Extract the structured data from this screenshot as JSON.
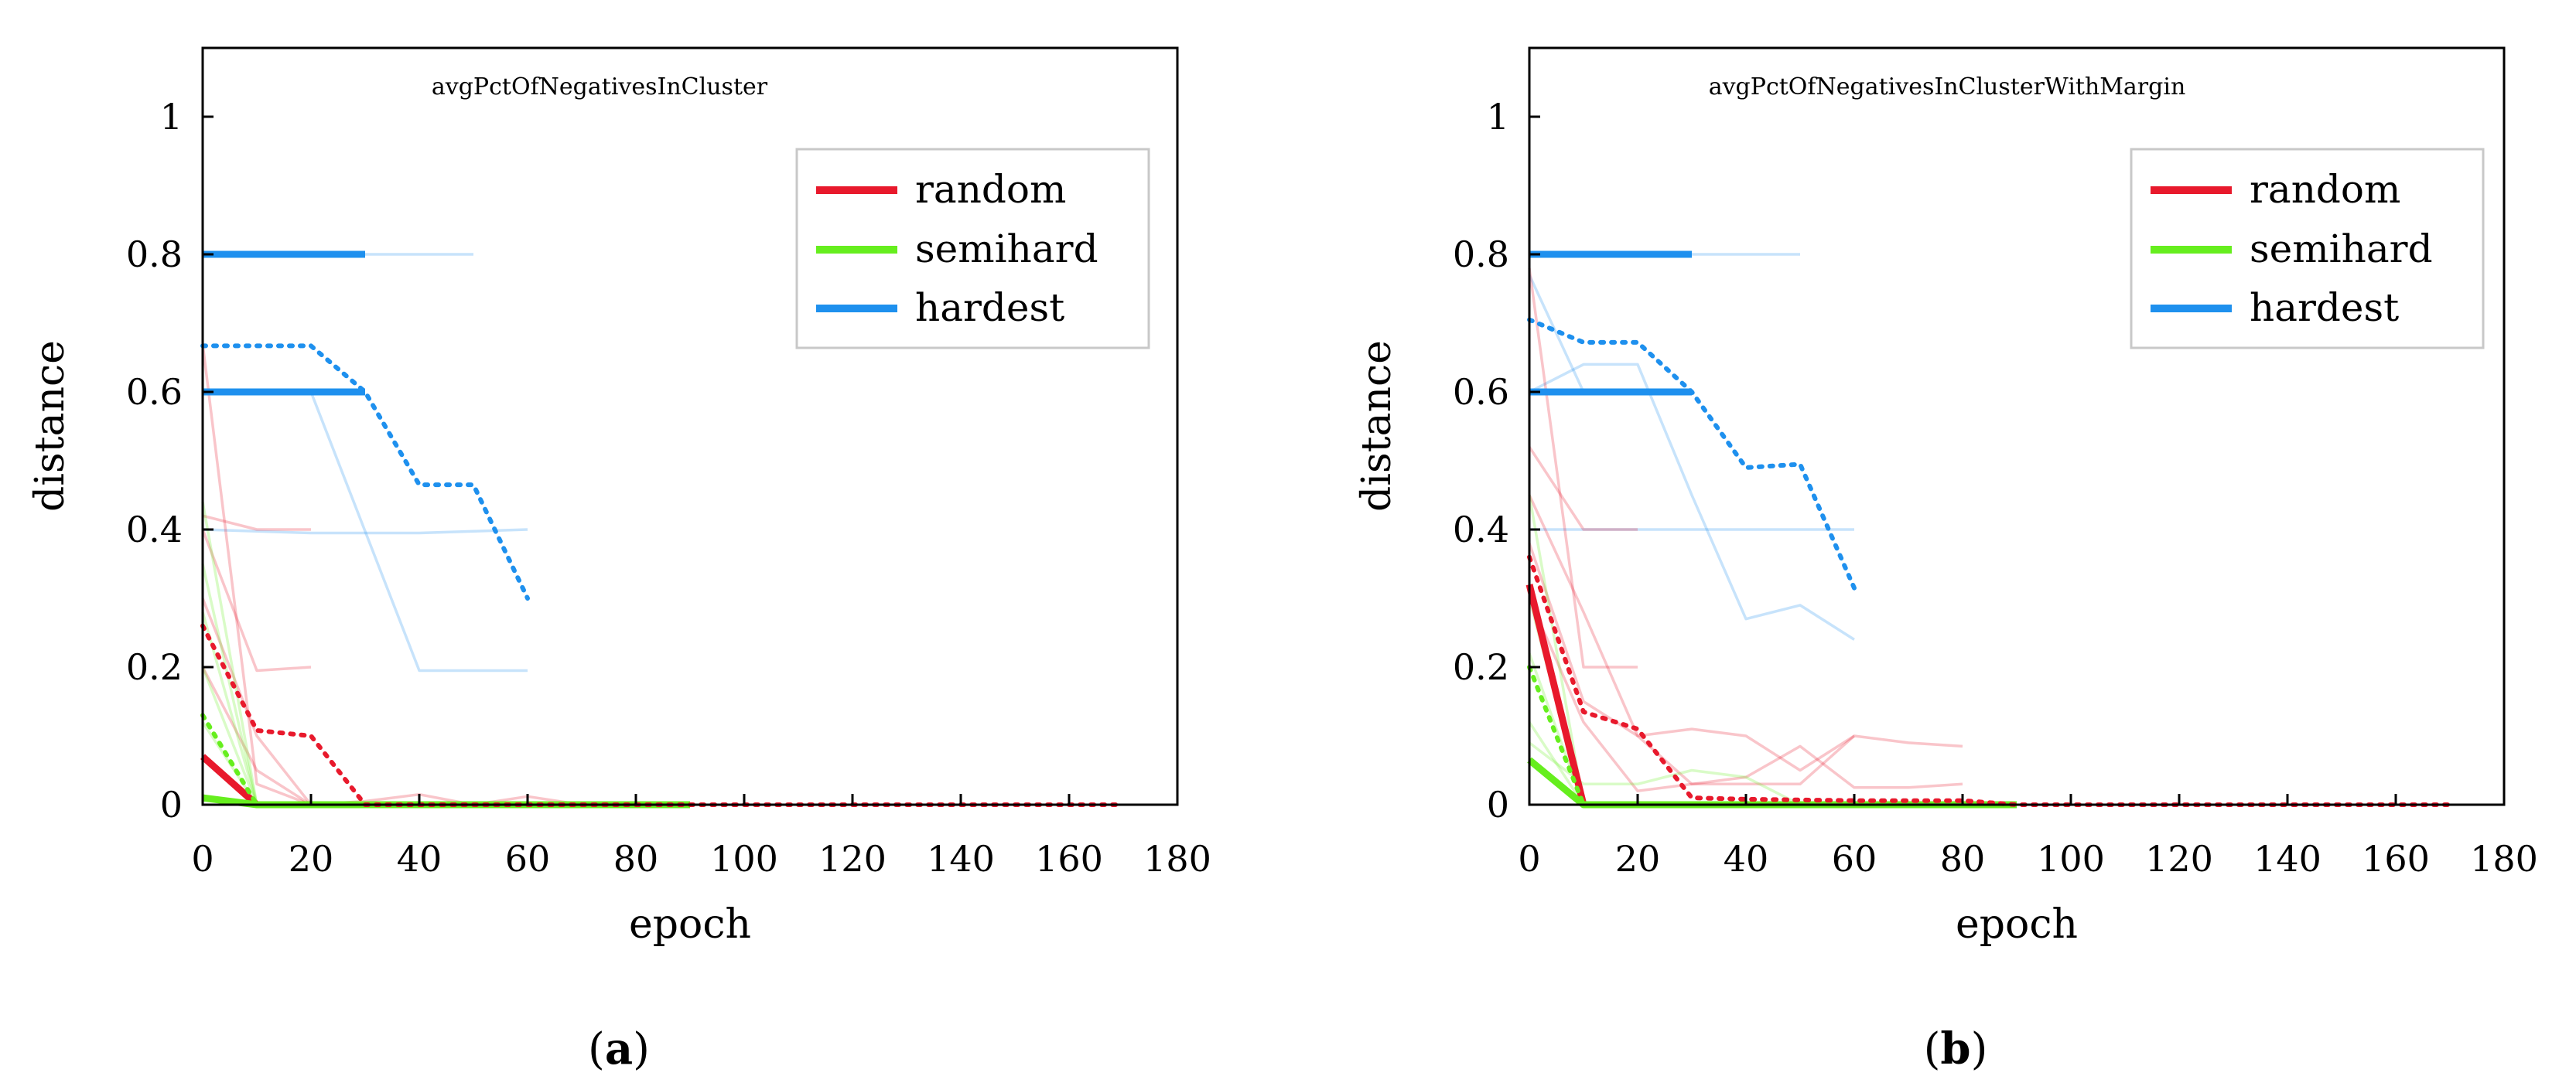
{
  "colors": {
    "random": "#e8192c",
    "semihard": "#66ee1e",
    "hardest": "#1e90ee"
  },
  "chart_data": [
    {
      "type": "line",
      "caption": "a",
      "title": "avgPctOfNegativesInCluster",
      "xlabel": "epoch",
      "ylabel": "distance",
      "xlim": [
        0,
        180
      ],
      "ylim": [
        0,
        1.1
      ],
      "xticks": [
        "0",
        "20",
        "40",
        "60",
        "80",
        "100",
        "120",
        "140",
        "160",
        "180"
      ],
      "yticks": [
        "0",
        "0.2",
        "0.4",
        "0.6",
        "0.8",
        "1"
      ],
      "legend": {
        "position": "top-right",
        "entries": [
          "random",
          "semihard",
          "hardest"
        ]
      },
      "series": [
        {
          "name": "hardest",
          "kind": "faint",
          "x": [
            0,
            20,
            30,
            50
          ],
          "y": [
            0.8,
            0.8,
            0.8,
            0.8
          ]
        },
        {
          "name": "hardest",
          "kind": "faint",
          "x": [
            0,
            10,
            20,
            40,
            60
          ],
          "y": [
            0.6,
            0.6,
            0.6,
            0.195,
            0.195
          ]
        },
        {
          "name": "hardest",
          "kind": "faint",
          "x": [
            0,
            20,
            40,
            60
          ],
          "y": [
            0.4,
            0.395,
            0.395,
            0.4
          ]
        },
        {
          "name": "hardest",
          "kind": "main",
          "x": [
            0,
            20,
            30
          ],
          "y": [
            0.8,
            0.8,
            0.8
          ]
        },
        {
          "name": "hardest",
          "kind": "main",
          "x": [
            0,
            20,
            30
          ],
          "y": [
            0.6,
            0.6,
            0.6
          ]
        },
        {
          "name": "hardest",
          "kind": "mean",
          "x": [
            0,
            10,
            20,
            30,
            40,
            50,
            60
          ],
          "y": [
            0.667,
            0.667,
            0.667,
            0.6,
            0.465,
            0.465,
            0.3
          ]
        },
        {
          "name": "random",
          "kind": "faint",
          "x": [
            0,
            10,
            20,
            30,
            40,
            50,
            60,
            70,
            80
          ],
          "y": [
            0.67,
            0.03,
            0.0,
            0.005,
            0.015,
            0.0,
            0.012,
            0.0,
            0.0
          ]
        },
        {
          "name": "random",
          "kind": "faint",
          "x": [
            0,
            10,
            20
          ],
          "y": [
            0.4,
            0.195,
            0.2
          ]
        },
        {
          "name": "random",
          "kind": "faint",
          "x": [
            0,
            10,
            20
          ],
          "y": [
            0.42,
            0.4,
            0.4
          ]
        },
        {
          "name": "random",
          "kind": "faint",
          "x": [
            0,
            10,
            20,
            30
          ],
          "y": [
            0.3,
            0.1,
            0.0,
            0.0
          ]
        },
        {
          "name": "random",
          "kind": "faint",
          "x": [
            0,
            10,
            20
          ],
          "y": [
            0.2,
            0.05,
            0.0
          ]
        },
        {
          "name": "random",
          "kind": "main",
          "x": [
            0,
            10
          ],
          "y": [
            0.07,
            0.0
          ]
        },
        {
          "name": "random",
          "kind": "mean",
          "x": [
            0,
            10,
            20,
            30,
            40,
            60,
            80,
            100,
            120,
            140,
            160,
            170
          ],
          "y": [
            0.26,
            0.108,
            0.1,
            0.0,
            0.0,
            0.0,
            0.0,
            0.0,
            0.0,
            0.0,
            0.0,
            0.0
          ]
        },
        {
          "name": "semihard",
          "kind": "faint",
          "x": [
            0,
            10
          ],
          "y": [
            0.44,
            0.0
          ]
        },
        {
          "name": "semihard",
          "kind": "faint",
          "x": [
            0,
            10
          ],
          "y": [
            0.35,
            0.0
          ]
        },
        {
          "name": "semihard",
          "kind": "faint",
          "x": [
            0,
            10
          ],
          "y": [
            0.28,
            0.0
          ]
        },
        {
          "name": "semihard",
          "kind": "faint",
          "x": [
            0,
            10
          ],
          "y": [
            0.2,
            0.0
          ]
        },
        {
          "name": "semihard",
          "kind": "faint",
          "x": [
            0,
            10
          ],
          "y": [
            0.12,
            0.0
          ]
        },
        {
          "name": "semihard",
          "kind": "main",
          "x": [
            0,
            10,
            20,
            40,
            60,
            80,
            90
          ],
          "y": [
            0.01,
            0.0,
            0.0,
            0.0,
            0.0,
            0.0,
            0.0
          ]
        },
        {
          "name": "semihard",
          "kind": "mean",
          "x": [
            0,
            10
          ],
          "y": [
            0.13,
            0.0
          ]
        }
      ]
    },
    {
      "type": "line",
      "caption": "b",
      "title": "avgPctOfNegativesInClusterWithMargin",
      "xlabel": "epoch",
      "ylabel": "distance",
      "xlim": [
        0,
        180
      ],
      "ylim": [
        0,
        1.1
      ],
      "xticks": [
        "0",
        "20",
        "40",
        "60",
        "80",
        "100",
        "120",
        "140",
        "160",
        "180"
      ],
      "yticks": [
        "0",
        "0.2",
        "0.4",
        "0.6",
        "0.8",
        "1"
      ],
      "legend": {
        "position": "top-right",
        "entries": [
          "random",
          "semihard",
          "hardest"
        ]
      },
      "series": [
        {
          "name": "hardest",
          "kind": "faint",
          "x": [
            0,
            20,
            30,
            50
          ],
          "y": [
            0.8,
            0.8,
            0.8,
            0.8
          ]
        },
        {
          "name": "hardest",
          "kind": "faint",
          "x": [
            0,
            10
          ],
          "y": [
            0.77,
            0.6
          ]
        },
        {
          "name": "hardest",
          "kind": "faint",
          "x": [
            0,
            10,
            20,
            30,
            40,
            50,
            60
          ],
          "y": [
            0.6,
            0.64,
            0.64,
            0.45,
            0.27,
            0.29,
            0.24
          ]
        },
        {
          "name": "hardest",
          "kind": "faint",
          "x": [
            0,
            20,
            40,
            60
          ],
          "y": [
            0.4,
            0.4,
            0.4,
            0.4
          ]
        },
        {
          "name": "hardest",
          "kind": "main",
          "x": [
            0,
            20,
            30
          ],
          "y": [
            0.8,
            0.8,
            0.8
          ]
        },
        {
          "name": "hardest",
          "kind": "main",
          "x": [
            0,
            20,
            30
          ],
          "y": [
            0.6,
            0.6,
            0.6
          ]
        },
        {
          "name": "hardest",
          "kind": "mean",
          "x": [
            0,
            10,
            20,
            30,
            40,
            50,
            60
          ],
          "y": [
            0.705,
            0.672,
            0.672,
            0.6,
            0.49,
            0.495,
            0.315
          ]
        },
        {
          "name": "random",
          "kind": "faint",
          "x": [
            0,
            10,
            20
          ],
          "y": [
            0.78,
            0.2,
            0.2
          ]
        },
        {
          "name": "random",
          "kind": "faint",
          "x": [
            0,
            10,
            20
          ],
          "y": [
            0.52,
            0.4,
            0.4
          ]
        },
        {
          "name": "random",
          "kind": "faint",
          "x": [
            0,
            10,
            20,
            30,
            40,
            50,
            60
          ],
          "y": [
            0.45,
            0.28,
            0.1,
            0.11,
            0.1,
            0.05,
            0.1
          ]
        },
        {
          "name": "random",
          "kind": "faint",
          "x": [
            0,
            10,
            20,
            30,
            40,
            50,
            60,
            70,
            80
          ],
          "y": [
            0.38,
            0.15,
            0.1,
            0.03,
            0.04,
            0.085,
            0.025,
            0.025,
            0.03
          ]
        },
        {
          "name": "random",
          "kind": "faint",
          "x": [
            0,
            10,
            20,
            30,
            40,
            50,
            60,
            70,
            80
          ],
          "y": [
            0.3,
            0.12,
            0.02,
            0.03,
            0.03,
            0.03,
            0.1,
            0.09,
            0.085
          ]
        },
        {
          "name": "random",
          "kind": "main",
          "x": [
            0,
            10
          ],
          "y": [
            0.32,
            0.0
          ]
        },
        {
          "name": "random",
          "kind": "mean",
          "x": [
            0,
            10,
            20,
            30,
            40,
            60,
            80,
            90,
            120,
            140,
            160,
            170
          ],
          "y": [
            0.36,
            0.135,
            0.11,
            0.01,
            0.008,
            0.006,
            0.006,
            0.0,
            0.0,
            0.0,
            0.0,
            0.0
          ]
        },
        {
          "name": "semihard",
          "kind": "faint",
          "x": [
            0,
            10
          ],
          "y": [
            0.45,
            0.0
          ]
        },
        {
          "name": "semihard",
          "kind": "faint",
          "x": [
            0,
            10
          ],
          "y": [
            0.3,
            0.0
          ]
        },
        {
          "name": "semihard",
          "kind": "faint",
          "x": [
            0,
            10
          ],
          "y": [
            0.22,
            0.0
          ]
        },
        {
          "name": "semihard",
          "kind": "faint",
          "x": [
            0,
            10
          ],
          "y": [
            0.12,
            0.0
          ]
        },
        {
          "name": "semihard",
          "kind": "faint",
          "x": [
            0,
            10,
            20,
            30,
            40,
            50
          ],
          "y": [
            0.09,
            0.03,
            0.03,
            0.05,
            0.04,
            0.0
          ]
        },
        {
          "name": "semihard",
          "kind": "main",
          "x": [
            0,
            10,
            20,
            40,
            60,
            80,
            90
          ],
          "y": [
            0.065,
            0.0,
            0.0,
            0.0,
            0.0,
            0.0,
            0.0
          ]
        },
        {
          "name": "semihard",
          "kind": "mean",
          "x": [
            0,
            10
          ],
          "y": [
            0.2,
            0.0
          ]
        }
      ]
    }
  ]
}
